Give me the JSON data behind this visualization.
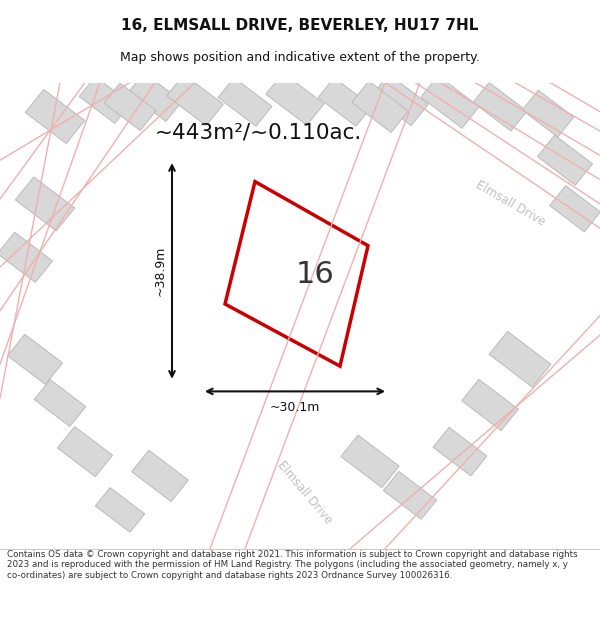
{
  "title": "16, ELMSALL DRIVE, BEVERLEY, HU17 7HL",
  "subtitle": "Map shows position and indicative extent of the property.",
  "area_text": "~443m²/~0.110ac.",
  "plot_number": "16",
  "dim_width": "~30.1m",
  "dim_height": "~38.9m",
  "road_label_bottom": "Elmsall Drive",
  "road_label_right": "Elmsall Drive",
  "footer": "Contains OS data © Crown copyright and database right 2021. This information is subject to Crown copyright and database rights 2023 and is reproduced with the permission of HM Land Registry. The polygons (including the associated geometry, namely x, y co-ordinates) are subject to Crown copyright and database rights 2023 Ordnance Survey 100026316.",
  "bg_color": "#ffffff",
  "map_bg": "#f5f5f5",
  "building_fill": "#d8d8d8",
  "building_edge": "#bbbbbb",
  "road_color": "#f0b0b0",
  "highlight_poly_color": "#cc0000",
  "dim_color": "#111111",
  "title_color": "#111111",
  "area_color": "#111111",
  "road_text_color": "#c0c0c0",
  "footer_color": "#333333",
  "separator_color": "#cccccc"
}
